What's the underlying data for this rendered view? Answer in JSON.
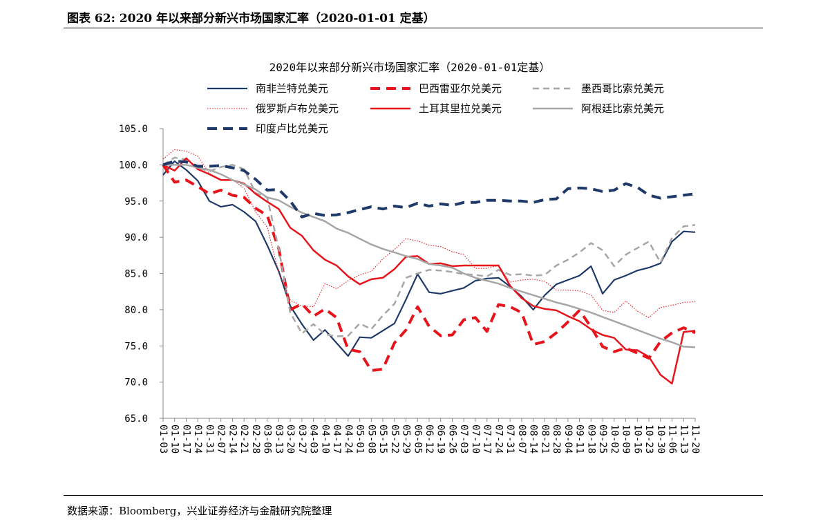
{
  "figure": {
    "label": "图表 62:",
    "title": "2020 年以来部分新兴市场国家汇率（2020-01-01 定基）"
  },
  "source": "数据来源：Bloomberg，兴业证券经济与金融研究院整理",
  "chart_data": {
    "type": "line",
    "title": "2020年以来部分新兴市场国家汇率（2020-01-01定基）",
    "xlabel": "",
    "ylabel": "",
    "ylim": [
      65.0,
      105.0
    ],
    "yticks": [
      "105.0",
      "100.0",
      "95.0",
      "90.0",
      "85.0",
      "80.0",
      "75.0",
      "70.0",
      "65.0"
    ],
    "grid": false,
    "legend_position": "top",
    "x": [
      "01-03",
      "01-10",
      "01-17",
      "01-24",
      "01-31",
      "02-07",
      "02-14",
      "02-21",
      "02-28",
      "03-06",
      "03-13",
      "03-20",
      "03-27",
      "04-03",
      "04-10",
      "04-17",
      "04-24",
      "05-01",
      "05-08",
      "05-15",
      "05-22",
      "05-29",
      "06-05",
      "06-12",
      "06-19",
      "06-26",
      "07-03",
      "07-10",
      "07-17",
      "07-24",
      "07-31",
      "08-07",
      "08-14",
      "08-21",
      "08-28",
      "09-04",
      "09-11",
      "09-18",
      "09-25",
      "10-02",
      "10-09",
      "10-16",
      "10-23",
      "10-30",
      "11-06",
      "11-13",
      "11-20"
    ],
    "series": [
      {
        "name": "南非兰特兑美元",
        "color": "#1f3a68",
        "style": "solid",
        "width": 2.2,
        "values": [
          98.6,
          100.5,
          99.3,
          97.8,
          95.0,
          94.2,
          94.5,
          93.5,
          92.2,
          88.9,
          85.3,
          80.5,
          78.0,
          75.8,
          77.2,
          75.4,
          73.6,
          76.2,
          76.1,
          77.1,
          78.1,
          81.4,
          84.9,
          82.4,
          82.2,
          82.6,
          83.0,
          84.0,
          84.3,
          84.4,
          83.2,
          81.8,
          80.0,
          82.0,
          83.5,
          84.1,
          84.7,
          86.0,
          82.2,
          84.1,
          84.7,
          85.4,
          85.8,
          86.4,
          89.4,
          90.8,
          90.7
        ]
      },
      {
        "name": "巴西雷亚尔兑美元",
        "color": "#e8141c",
        "style": "dash",
        "width": 4,
        "values": [
          100.0,
          97.6,
          97.9,
          97.0,
          96.0,
          96.5,
          95.8,
          95.5,
          94.0,
          93.0,
          88.4,
          80.0,
          80.8,
          79.1,
          80.1,
          78.9,
          74.5,
          74.2,
          71.6,
          71.8,
          75.4,
          77.2,
          80.4,
          77.7,
          76.4,
          76.5,
          78.6,
          78.9,
          77.0,
          80.7,
          80.4,
          79.6,
          75.2,
          75.6,
          76.8,
          78.3,
          79.9,
          77.6,
          74.9,
          74.2,
          74.7,
          74.0,
          73.3,
          75.6,
          76.8,
          77.5,
          76.8
        ]
      },
      {
        "name": "墨西哥比索兑美元",
        "color": "#a6a6a6",
        "style": "dash",
        "width": 2.5,
        "values": [
          100.0,
          101.0,
          100.7,
          99.6,
          99.1,
          99.7,
          100.0,
          99.4,
          96.1,
          95.5,
          88.4,
          79.6,
          76.7,
          78.0,
          76.6,
          76.3,
          76.4,
          78.1,
          77.3,
          79.2,
          80.8,
          84.4,
          85.0,
          85.5,
          85.4,
          85.2,
          84.9,
          84.8,
          84.6,
          85.5,
          84.8,
          84.9,
          84.7,
          84.8,
          86.1,
          86.9,
          87.9,
          89.2,
          88.2,
          86.0,
          87.6,
          88.5,
          89.4,
          86.5,
          89.9,
          91.5,
          91.7
        ]
      },
      {
        "name": "俄罗斯卢布兑美元",
        "color": "#e8141c",
        "style": "dot",
        "width": 1.1,
        "values": [
          100.8,
          102.1,
          101.9,
          101.2,
          98.8,
          98.0,
          97.9,
          96.8,
          93.5,
          91.4,
          85.1,
          81.3,
          80.5,
          80.4,
          83.6,
          82.9,
          84.0,
          84.8,
          85.3,
          87.0,
          88.3,
          89.8,
          89.5,
          88.9,
          88.7,
          88.0,
          87.6,
          85.7,
          85.7,
          86.1,
          83.8,
          84.1,
          84.2,
          83.9,
          82.7,
          82.7,
          82.6,
          82.0,
          79.9,
          79.6,
          81.2,
          79.8,
          78.9,
          80.3,
          80.6,
          81.0,
          81.1
        ]
      },
      {
        "name": "土耳其里拉兑美元",
        "color": "#e8141c",
        "style": "solid",
        "width": 2.5,
        "values": [
          100.0,
          99.2,
          100.9,
          99.4,
          98.7,
          97.9,
          97.9,
          97.4,
          96.0,
          94.9,
          93.9,
          91.3,
          90.2,
          88.2,
          86.9,
          86.1,
          84.6,
          83.5,
          84.2,
          84.4,
          85.6,
          87.3,
          87.4,
          86.3,
          86.4,
          86.0,
          86.1,
          86.1,
          86.1,
          86.1,
          83.3,
          81.6,
          80.5,
          80.1,
          79.9,
          79.1,
          78.4,
          77.3,
          76.5,
          76.1,
          74.5,
          74.4,
          73.5,
          71.0,
          69.8,
          76.9,
          77.1
        ]
      },
      {
        "name": "阿根廷比索兑美元",
        "color": "#a6a6a6",
        "style": "solid",
        "width": 2.5,
        "values": [
          100.0,
          100.0,
          100.0,
          99.6,
          99.3,
          98.7,
          97.9,
          97.3,
          96.6,
          95.5,
          95.1,
          94.2,
          93.4,
          92.8,
          92.2,
          91.2,
          90.6,
          89.8,
          89.0,
          88.4,
          87.9,
          87.4,
          87.0,
          86.3,
          86.1,
          85.8,
          85.0,
          84.4,
          84.0,
          83.6,
          83.0,
          82.5,
          82.0,
          81.5,
          81.0,
          80.6,
          80.1,
          79.6,
          79.0,
          78.4,
          77.8,
          77.2,
          76.6,
          76.0,
          75.5,
          74.9,
          74.8
        ]
      },
      {
        "name": "印度卢比兑美元",
        "color": "#1f3a68",
        "style": "dash",
        "width": 4,
        "values": [
          100.0,
          100.5,
          100.4,
          99.8,
          99.8,
          99.9,
          99.6,
          99.2,
          98.0,
          96.5,
          96.6,
          95.0,
          92.8,
          93.3,
          93.0,
          93.1,
          93.4,
          93.8,
          94.2,
          93.9,
          94.3,
          94.1,
          94.7,
          94.3,
          94.6,
          94.4,
          94.8,
          94.8,
          95.1,
          95.1,
          95.0,
          95.0,
          94.8,
          95.2,
          95.3,
          96.7,
          96.8,
          96.7,
          96.3,
          96.5,
          97.4,
          96.9,
          95.8,
          95.4,
          95.6,
          95.8,
          96.0
        ]
      }
    ]
  }
}
